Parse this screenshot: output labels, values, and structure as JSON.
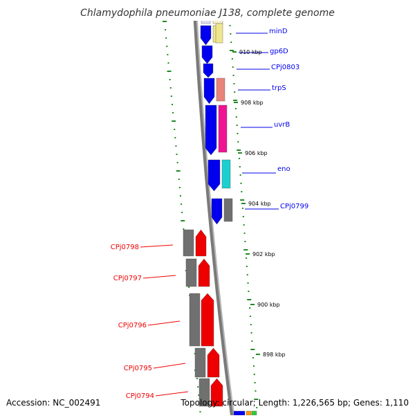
{
  "title": "Chlamydophila pneumoniae J138, complete genome",
  "footer": {
    "accession": "Accession: NC_002491",
    "topology": "Topology: circular; Length: 1,226,565 bp; Genes: 1,110"
  },
  "colors": {
    "forward_strand": "#0000ee",
    "reverse_strand": "#ee0000",
    "backbone": "#7a7a7a",
    "tick_mark": "#228822",
    "cog_gray": "#707070",
    "cog_yellow": "#f0e68c",
    "cog_salmon": "#e9837a",
    "cog_pink": "#ee1493",
    "cog_cyan": "#1ccfcf"
  },
  "scale_labels": [
    "910 kbp",
    "908 kbp",
    "906 kbp",
    "904 kbp",
    "902 kbp",
    "900 kbp",
    "898 kbp"
  ],
  "forward_genes": [
    {
      "name": "minD",
      "cog": "cog_yellow"
    },
    {
      "name": "gp6D",
      "cog": ""
    },
    {
      "name": "CPj0803",
      "cog": ""
    },
    {
      "name": "trpS",
      "cog": "cog_salmon"
    },
    {
      "name": "uvrB",
      "cog": "cog_pink"
    },
    {
      "name": "eno",
      "cog": "cog_cyan"
    },
    {
      "name": "CPj0799",
      "cog": "cog_gray"
    }
  ],
  "reverse_genes": [
    {
      "name": "CPj0798",
      "cog": "cog_gray"
    },
    {
      "name": "CPj0797",
      "cog": "cog_gray"
    },
    {
      "name": "CPj0796",
      "cog": "cog_gray"
    },
    {
      "name": "CPj0795",
      "cog": "cog_gray"
    },
    {
      "name": "CPj0794",
      "cog": "cog_gray"
    }
  ]
}
